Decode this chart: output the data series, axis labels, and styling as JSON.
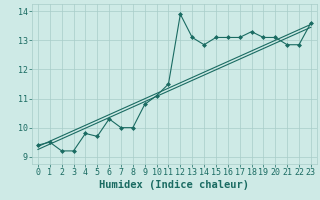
{
  "xlabel": "Humidex (Indice chaleur)",
  "xlim": [
    -0.5,
    23.5
  ],
  "ylim": [
    8.75,
    14.25
  ],
  "xticks": [
    0,
    1,
    2,
    3,
    4,
    5,
    6,
    7,
    8,
    9,
    10,
    11,
    12,
    13,
    14,
    15,
    16,
    17,
    18,
    19,
    20,
    21,
    22,
    23
  ],
  "yticks": [
    9,
    10,
    11,
    12,
    13,
    14
  ],
  "background_color": "#ceeae6",
  "grid_color": "#a8cdc9",
  "line_color": "#1a6b62",
  "series": [
    {
      "x": [
        0,
        1,
        2,
        3,
        4,
        5,
        6,
        7,
        8,
        9,
        10,
        11,
        12,
        13,
        14,
        15,
        16,
        17,
        18,
        19,
        20,
        21,
        22,
        23
      ],
      "y": [
        9.4,
        9.5,
        9.2,
        9.2,
        9.8,
        9.7,
        10.3,
        10.0,
        10.0,
        10.8,
        11.1,
        11.5,
        13.9,
        13.1,
        12.85,
        13.1,
        13.1,
        13.1,
        13.3,
        13.1,
        13.1,
        12.85,
        12.85,
        13.6
      ],
      "marker": "D",
      "markersize": 2.0
    },
    {
      "x": [
        0,
        23
      ],
      "y": [
        9.35,
        13.55
      ],
      "marker": null,
      "markersize": 0
    },
    {
      "x": [
        0,
        23
      ],
      "y": [
        9.25,
        13.45
      ],
      "marker": null,
      "markersize": 0
    }
  ],
  "tick_fontsize": 6.0,
  "xlabel_fontsize": 7.5
}
